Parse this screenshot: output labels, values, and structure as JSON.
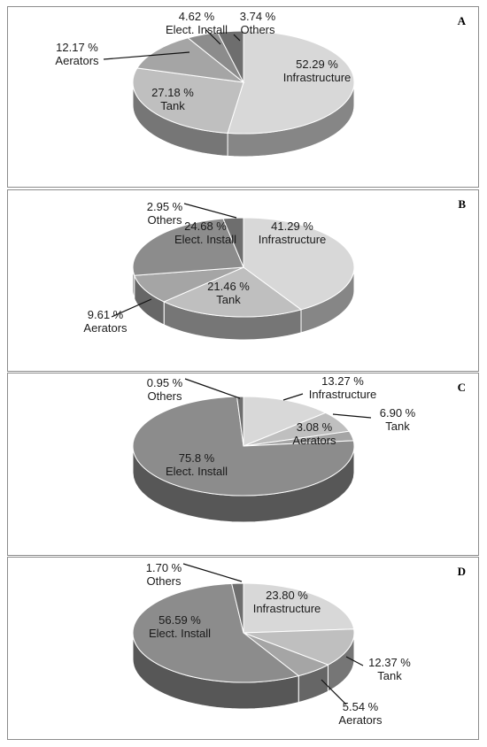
{
  "chart_data": [
    {
      "type": "pie",
      "panel": "A",
      "slices": [
        {
          "name": "Infrastructure",
          "value": 52.29,
          "value_label": "52.29 %",
          "color": "#d8d8d8"
        },
        {
          "name": "Tank",
          "value": 27.18,
          "value_label": "27.18 %",
          "color": "#bfbfbf"
        },
        {
          "name": "Aerators",
          "value": 12.17,
          "value_label": "12.17 %",
          "color": "#a5a5a5"
        },
        {
          "name": "Elect. Install",
          "value": 4.62,
          "value_label": "4.62 %",
          "color": "#8c8c8c"
        },
        {
          "name": "Others",
          "value": 3.74,
          "value_label": "3.74 %",
          "color": "#6e6e6e"
        }
      ]
    },
    {
      "type": "pie",
      "panel": "B",
      "slices": [
        {
          "name": "Infrastructure",
          "value": 41.29,
          "value_label": "41.29 %",
          "color": "#d8d8d8"
        },
        {
          "name": "Tank",
          "value": 21.46,
          "value_label": "21.46 %",
          "color": "#bfbfbf"
        },
        {
          "name": "Aerators",
          "value": 9.61,
          "value_label": "9.61 %",
          "color": "#a5a5a5"
        },
        {
          "name": "Elect. Install",
          "value": 24.68,
          "value_label": "24.68 %",
          "color": "#8c8c8c"
        },
        {
          "name": "Others",
          "value": 2.95,
          "value_label": "2.95 %",
          "color": "#6e6e6e"
        }
      ]
    },
    {
      "type": "pie",
      "panel": "C",
      "slices": [
        {
          "name": "Infrastructure",
          "value": 13.27,
          "value_label": "13.27 %",
          "color": "#d8d8d8"
        },
        {
          "name": "Tank",
          "value": 6.9,
          "value_label": "6.90 %",
          "color": "#bfbfbf"
        },
        {
          "name": "Aerators",
          "value": 3.08,
          "value_label": "3.08 %",
          "color": "#a5a5a5"
        },
        {
          "name": "Elect. Install",
          "value": 75.8,
          "value_label": "75.8 %",
          "color": "#8c8c8c"
        },
        {
          "name": "Others",
          "value": 0.95,
          "value_label": "0.95 %",
          "color": "#6e6e6e"
        }
      ]
    },
    {
      "type": "pie",
      "panel": "D",
      "slices": [
        {
          "name": "Infrastructure",
          "value": 23.8,
          "value_label": "23.80 %",
          "color": "#d8d8d8"
        },
        {
          "name": "Tank",
          "value": 12.37,
          "value_label": "12.37 %",
          "color": "#bfbfbf"
        },
        {
          "name": "Aerators",
          "value": 5.54,
          "value_label": "5.54 %",
          "color": "#a5a5a5"
        },
        {
          "name": "Elect. Install",
          "value": 56.59,
          "value_label": "56.59 %",
          "color": "#8c8c8c"
        },
        {
          "name": "Others",
          "value": 1.7,
          "value_label": "1.70 %",
          "color": "#6e6e6e"
        }
      ]
    }
  ]
}
